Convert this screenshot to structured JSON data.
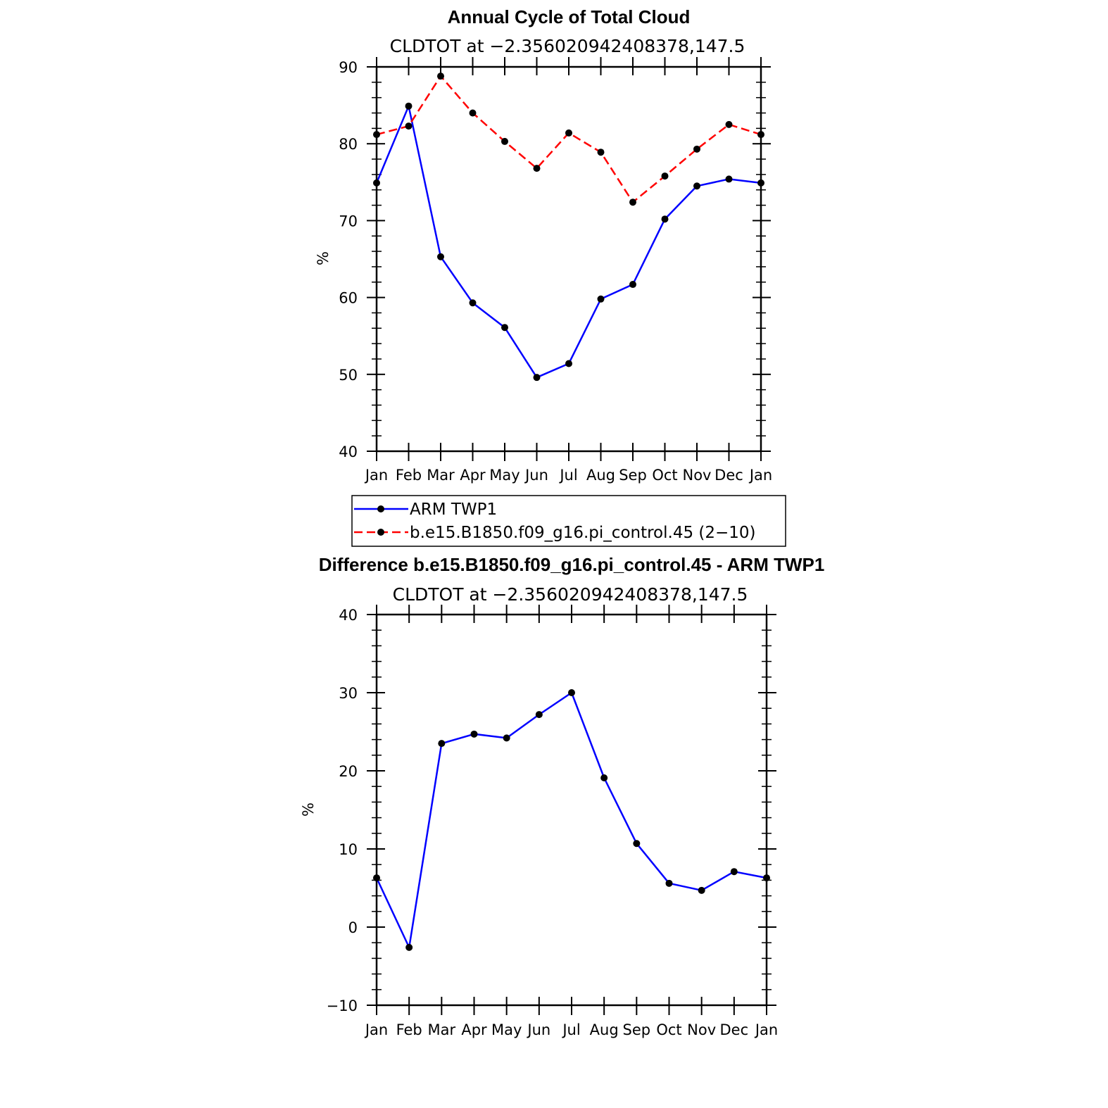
{
  "months": [
    "Jan",
    "Feb",
    "Mar",
    "Apr",
    "May",
    "Jun",
    "Jul",
    "Aug",
    "Sep",
    "Oct",
    "Nov",
    "Dec",
    "Jan"
  ],
  "colors": {
    "obs": "#0000ff",
    "model": "#ff0000",
    "marker": "#000000"
  },
  "chart_data": [
    {
      "type": "line",
      "title": "Annual Cycle of Total Cloud",
      "subtitle": "CLDTOT at −2.356020942408378,147.5",
      "ylabel": "%",
      "ylim": [
        40,
        90
      ],
      "yticks": [
        40,
        50,
        60,
        70,
        80,
        90
      ],
      "ytick_labels": [
        "40",
        "50",
        "60",
        "70",
        "80",
        "90"
      ],
      "series": [
        {
          "name": "ARM TWP1",
          "style": "solid",
          "color": "#0000ff",
          "values": [
            74.9,
            84.9,
            65.3,
            59.3,
            56.1,
            49.6,
            51.4,
            59.8,
            61.7,
            70.2,
            74.5,
            75.4,
            74.9
          ]
        },
        {
          "name": "b.e15.B1850.f09_g16.pi_control.45 (2−10)",
          "style": "dashed",
          "color": "#ff0000",
          "values": [
            81.2,
            82.3,
            88.8,
            84.0,
            80.3,
            76.8,
            81.4,
            78.9,
            72.4,
            75.8,
            79.3,
            82.5,
            81.2
          ]
        }
      ]
    },
    {
      "type": "line",
      "title": "Difference b.e15.B1850.f09_g16.pi_control.45 - ARM TWP1",
      "subtitle": "CLDTOT at −2.356020942408378,147.5",
      "ylabel": "%",
      "ylim": [
        -10,
        40
      ],
      "yticks": [
        -10,
        0,
        10,
        20,
        30,
        40
      ],
      "ytick_labels": [
        "−10",
        "0",
        "10",
        "20",
        "30",
        "40"
      ],
      "series": [
        {
          "name": "Difference",
          "style": "solid",
          "color": "#0000ff",
          "values": [
            6.3,
            -2.6,
            23.5,
            24.7,
            24.2,
            27.2,
            30.0,
            19.1,
            10.7,
            5.6,
            4.7,
            7.1,
            6.3
          ]
        }
      ]
    }
  ],
  "legend": {
    "entries": [
      "ARM TWP1",
      "b.e15.B1850.f09_g16.pi_control.45 (2−10)"
    ]
  }
}
